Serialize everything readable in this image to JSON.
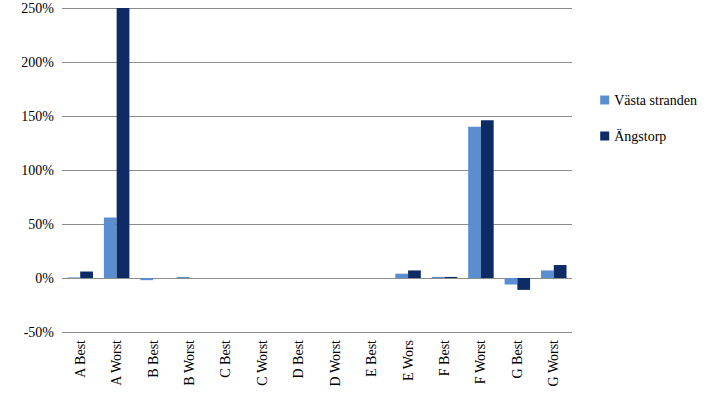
{
  "chart_data": {
    "type": "bar",
    "categories": [
      "A Best",
      "A Worst",
      "B Best",
      "B Worst",
      "C Best",
      "C Worst",
      "D Best",
      "D Worst",
      "E Best",
      "E Wors",
      "F Best",
      "F Worst",
      "G Best",
      "G Worst"
    ],
    "series": [
      {
        "name": "Västa stranden",
        "color": "#5a8ed0",
        "values": [
          0.5,
          56,
          -2,
          1,
          0,
          0,
          0,
          0,
          0,
          4,
          1,
          140,
          -6,
          7
        ]
      },
      {
        "name": "Ängstorp",
        "color": "#0f2b66",
        "values": [
          6,
          250,
          0,
          0,
          0,
          0,
          0,
          0,
          0,
          7,
          1,
          146,
          -11,
          12
        ]
      }
    ],
    "ylim": [
      -50,
      250
    ],
    "yticks": [
      {
        "value": -50,
        "label": "-50%"
      },
      {
        "value": 0,
        "label": "0%"
      },
      {
        "value": 50,
        "label": "50%"
      },
      {
        "value": 100,
        "label": "100%"
      },
      {
        "value": 150,
        "label": "150%"
      },
      {
        "value": 200,
        "label": "200%"
      },
      {
        "value": 250,
        "label": "250%"
      }
    ],
    "grid": true,
    "legend": "right"
  }
}
